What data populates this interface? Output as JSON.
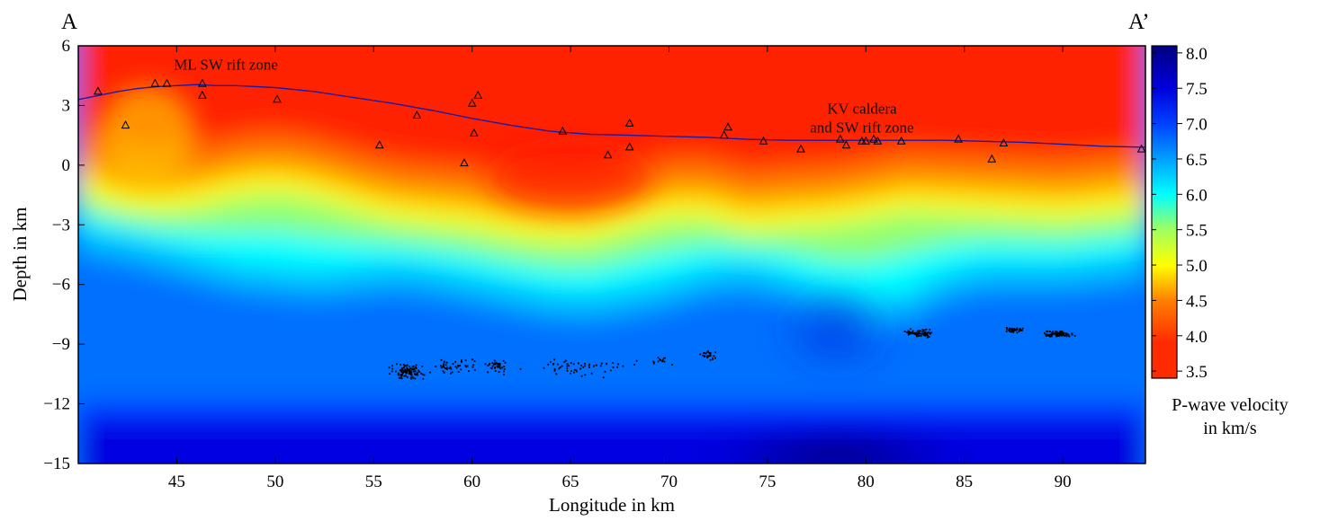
{
  "chart_data": {
    "type": "heatmap",
    "title": "",
    "xlabel": "Longitude in km",
    "ylabel": "Depth in km",
    "xlim": [
      40,
      94.2
    ],
    "ylim": [
      -15,
      6
    ],
    "xticks": [
      45,
      50,
      55,
      60,
      65,
      70,
      75,
      80,
      85,
      90
    ],
    "yticks": [
      6,
      3,
      0,
      -3,
      -6,
      -9,
      -12,
      -15
    ],
    "section_start_label": "A",
    "section_end_label": "A’",
    "annotations": [
      {
        "lines": [
          "ML SW rift zone"
        ],
        "x": 47.5,
        "y": 4.8
      },
      {
        "lines": [
          "KV caldera",
          "and SW rift zone"
        ],
        "x": 79.8,
        "y": 2.6
      }
    ],
    "colorbar": {
      "title_lines": [
        "P-wave velocity",
        "in km/s"
      ],
      "range": [
        3.4,
        8.1
      ],
      "ticks": [
        "8.0",
        "7.5",
        "7.0",
        "6.5",
        "6.0",
        "5.5",
        "5.0",
        "4.5",
        "4.0",
        "3.5"
      ],
      "colormap": "jet",
      "colors": [
        "#800000",
        "#ff0000",
        "#ff8000",
        "#ffff00",
        "#80ff80",
        "#00ffff",
        "#0080ff",
        "#0000ff",
        "#000080"
      ]
    },
    "velocity_layers": [
      {
        "x": [
          40,
          42,
          44,
          46,
          48,
          50,
          52,
          54,
          56,
          58,
          60,
          62,
          64,
          66,
          68,
          70,
          72,
          74,
          76,
          78,
          80,
          82,
          84,
          86,
          88,
          90,
          92,
          94.2
        ],
        "depth_of_4_5_kms": [
          0.5,
          -0.3,
          -0.5,
          -0.3,
          0.2,
          0.4,
          0.1,
          -0.5,
          -1.0,
          -1.2,
          -1.4,
          -1.8,
          -2.0,
          -2.0,
          -1.4,
          -0.9,
          -0.9,
          -1.5,
          -1.3,
          -1.2,
          -0.9,
          -0.5,
          -0.6,
          -0.7,
          -0.8,
          -0.9,
          -0.7,
          -0.5
        ]
      },
      {
        "x": [
          40,
          42,
          44,
          46,
          48,
          50,
          52,
          54,
          56,
          58,
          60,
          62,
          64,
          66,
          68,
          70,
          72,
          74,
          76,
          78,
          80,
          82,
          84,
          86,
          88,
          90,
          92,
          94.2
        ],
        "depth_of_6_5_kms": [
          -3.2,
          -3.5,
          -4.0,
          -4.5,
          -5.0,
          -5.2,
          -5.4,
          -5.2,
          -5.0,
          -5.2,
          -5.6,
          -6.0,
          -6.4,
          -6.5,
          -6.2,
          -5.8,
          -5.2,
          -5.0,
          -5.5,
          -6.5,
          -7.0,
          -6.5,
          -5.5,
          -5.0,
          -5.0,
          -5.0,
          -4.8,
          -4.5
        ]
      },
      {
        "x": [
          40,
          94.2
        ],
        "depth_of_7_6_kms": [
          -12.4,
          -12.4
        ]
      }
    ],
    "topography": {
      "x": [
        40,
        41,
        42,
        43,
        44,
        45,
        46,
        47,
        48,
        49,
        50,
        52,
        54,
        56,
        58,
        60,
        62,
        64,
        66,
        68,
        70,
        72,
        74,
        76,
        78,
        80,
        82,
        84,
        86,
        88,
        90,
        92,
        94.2
      ],
      "y": [
        3.3,
        3.5,
        3.7,
        3.85,
        3.95,
        4.0,
        4.05,
        4.0,
        4.0,
        3.95,
        3.9,
        3.7,
        3.4,
        3.1,
        2.75,
        2.35,
        2.0,
        1.7,
        1.55,
        1.5,
        1.45,
        1.4,
        1.3,
        1.25,
        1.25,
        1.25,
        1.25,
        1.25,
        1.2,
        1.15,
        1.05,
        0.95,
        0.9
      ]
    },
    "stations": [
      {
        "x": 41.0,
        "y": 3.7
      },
      {
        "x": 42.4,
        "y": 2.0
      },
      {
        "x": 43.9,
        "y": 4.1
      },
      {
        "x": 44.5,
        "y": 4.1
      },
      {
        "x": 46.3,
        "y": 4.1
      },
      {
        "x": 46.3,
        "y": 3.5
      },
      {
        "x": 50.1,
        "y": 3.3
      },
      {
        "x": 55.3,
        "y": 1.0
      },
      {
        "x": 57.2,
        "y": 2.5
      },
      {
        "x": 59.6,
        "y": 0.1
      },
      {
        "x": 60.0,
        "y": 3.1
      },
      {
        "x": 60.1,
        "y": 1.6
      },
      {
        "x": 60.3,
        "y": 3.5
      },
      {
        "x": 64.6,
        "y": 1.7
      },
      {
        "x": 66.9,
        "y": 0.5
      },
      {
        "x": 68.0,
        "y": 2.1
      },
      {
        "x": 68.0,
        "y": 0.9
      },
      {
        "x": 72.8,
        "y": 1.5
      },
      {
        "x": 73.0,
        "y": 1.9
      },
      {
        "x": 74.8,
        "y": 1.2
      },
      {
        "x": 76.7,
        "y": 0.8
      },
      {
        "x": 78.7,
        "y": 1.3
      },
      {
        "x": 79.0,
        "y": 1.0
      },
      {
        "x": 79.8,
        "y": 1.2
      },
      {
        "x": 80.0,
        "y": 1.2
      },
      {
        "x": 80.4,
        "y": 1.3
      },
      {
        "x": 80.6,
        "y": 1.2
      },
      {
        "x": 81.8,
        "y": 1.2
      },
      {
        "x": 84.7,
        "y": 1.3
      },
      {
        "x": 86.4,
        "y": 0.3
      },
      {
        "x": 87.0,
        "y": 1.1
      },
      {
        "x": 94.0,
        "y": 0.8
      }
    ],
    "earthquake_clusters": [
      {
        "x_range": [
          55.5,
          58.0
        ],
        "y_range": [
          -10.9,
          -9.9
        ],
        "count": 110
      },
      {
        "x_range": [
          57.5,
          60.5
        ],
        "y_range": [
          -10.5,
          -9.6
        ],
        "count": 45
      },
      {
        "x_range": [
          60.5,
          62.0
        ],
        "y_range": [
          -10.6,
          -9.6
        ],
        "count": 40
      },
      {
        "x_range": [
          62.0,
          69.0
        ],
        "y_range": [
          -10.8,
          -9.5
        ],
        "count": 60
      },
      {
        "x_range": [
          69.0,
          70.5
        ],
        "y_range": [
          -10.2,
          -9.5
        ],
        "count": 12
      },
      {
        "x_range": [
          71.4,
          72.6
        ],
        "y_range": [
          -9.9,
          -9.2
        ],
        "count": 25
      },
      {
        "x_range": [
          81.8,
          83.7
        ],
        "y_range": [
          -8.7,
          -8.2
        ],
        "count": 75
      },
      {
        "x_range": [
          86.8,
          88.2
        ],
        "y_range": [
          -8.5,
          -8.1
        ],
        "count": 45
      },
      {
        "x_range": [
          88.6,
          90.8
        ],
        "y_range": [
          -8.7,
          -8.3
        ],
        "count": 90
      }
    ]
  }
}
